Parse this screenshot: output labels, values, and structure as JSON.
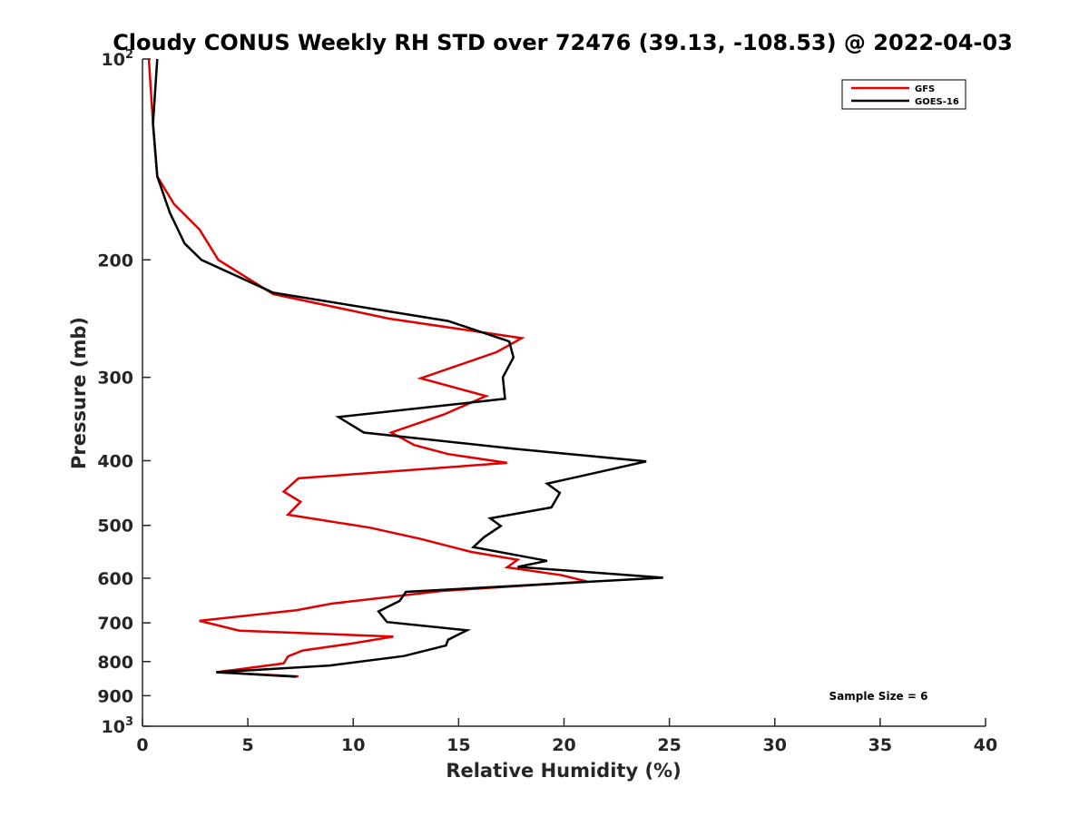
{
  "chart_data": {
    "type": "line",
    "title": "Cloudy CONUS Weekly RH STD over 72476 (39.13, -108.53) @ 2022-04-03",
    "xlabel": "Relative Humidity (%)",
    "ylabel": "Pressure (mb)",
    "xlim": [
      0,
      40
    ],
    "ylim": [
      100,
      1000
    ],
    "yscale": "log",
    "y_reversed": true,
    "grid": false,
    "legend_position": "top-right",
    "x_ticks": [
      0,
      5,
      10,
      15,
      20,
      25,
      30,
      35,
      40
    ],
    "x_tick_labels": [
      "0",
      "5",
      "10",
      "15",
      "20",
      "25",
      "30",
      "35",
      "40"
    ],
    "y_ticks": [
      {
        "value": 100,
        "label": "10",
        "sup": "2"
      },
      {
        "value": 200,
        "label": "200",
        "sup": ""
      },
      {
        "value": 300,
        "label": "300",
        "sup": ""
      },
      {
        "value": 400,
        "label": "400",
        "sup": ""
      },
      {
        "value": 500,
        "label": "500",
        "sup": ""
      },
      {
        "value": 600,
        "label": "600",
        "sup": ""
      },
      {
        "value": 700,
        "label": "700",
        "sup": ""
      },
      {
        "value": 800,
        "label": "800",
        "sup": ""
      },
      {
        "value": 900,
        "label": "900",
        "sup": ""
      },
      {
        "value": 1000,
        "label": "10",
        "sup": "3"
      }
    ],
    "series": [
      {
        "name": "GFS",
        "color": "#e00000",
        "points": [
          [
            0.3,
            100
          ],
          [
            0.5,
            125
          ],
          [
            0.7,
            150
          ],
          [
            1.5,
            165
          ],
          [
            2.7,
            180
          ],
          [
            3.6,
            200
          ],
          [
            6.2,
            225
          ],
          [
            11.7,
            245
          ],
          [
            18.0,
            262
          ],
          [
            16.8,
            275
          ],
          [
            13.2,
            301
          ],
          [
            16.3,
            320
          ],
          [
            14.3,
            341
          ],
          [
            11.8,
            363
          ],
          [
            12.9,
            379
          ],
          [
            14.5,
            391
          ],
          [
            17.3,
            403
          ],
          [
            7.4,
            425
          ],
          [
            6.7,
            445
          ],
          [
            7.5,
            461
          ],
          [
            6.9,
            482
          ],
          [
            10.8,
            504
          ],
          [
            13.2,
            524
          ],
          [
            15.6,
            548
          ],
          [
            17.8,
            563
          ],
          [
            17.3,
            578
          ],
          [
            19.9,
            594
          ],
          [
            21.1,
            607
          ],
          [
            14.2,
            627
          ],
          [
            9.0,
            655
          ],
          [
            7.3,
            670
          ],
          [
            2.7,
            695
          ],
          [
            4.6,
            719
          ],
          [
            11.9,
            734
          ],
          [
            9.9,
            752
          ],
          [
            7.6,
            770
          ],
          [
            6.9,
            786
          ],
          [
            6.7,
            805
          ],
          [
            3.5,
            830
          ],
          [
            7.4,
            842
          ]
        ]
      },
      {
        "name": "GOES-16",
        "color": "#000000",
        "points": [
          [
            0.7,
            100
          ],
          [
            0.5,
            125
          ],
          [
            0.7,
            150
          ],
          [
            1.3,
            170
          ],
          [
            2.0,
            189
          ],
          [
            2.8,
            200
          ],
          [
            6.2,
            224
          ],
          [
            14.5,
            247
          ],
          [
            17.4,
            265
          ],
          [
            17.6,
            280
          ],
          [
            17.1,
            300
          ],
          [
            17.2,
            323
          ],
          [
            9.3,
            344
          ],
          [
            10.5,
            363
          ],
          [
            17.7,
            384
          ],
          [
            23.9,
            401
          ],
          [
            19.2,
            433
          ],
          [
            19.8,
            447
          ],
          [
            19.4,
            470
          ],
          [
            16.5,
            488
          ],
          [
            17.0,
            501
          ],
          [
            16.2,
            521
          ],
          [
            15.7,
            539
          ],
          [
            19.2,
            565
          ],
          [
            17.8,
            577
          ],
          [
            24.7,
            599
          ],
          [
            12.5,
            629
          ],
          [
            12.2,
            649
          ],
          [
            11.2,
            673
          ],
          [
            11.6,
            698
          ],
          [
            15.4,
            718
          ],
          [
            14.5,
            742
          ],
          [
            14.4,
            757
          ],
          [
            12.4,
            785
          ],
          [
            8.9,
            811
          ],
          [
            3.5,
            830
          ],
          [
            7.3,
            843
          ]
        ]
      }
    ],
    "annotations": [
      {
        "text": "Sample Size = 6"
      }
    ]
  }
}
